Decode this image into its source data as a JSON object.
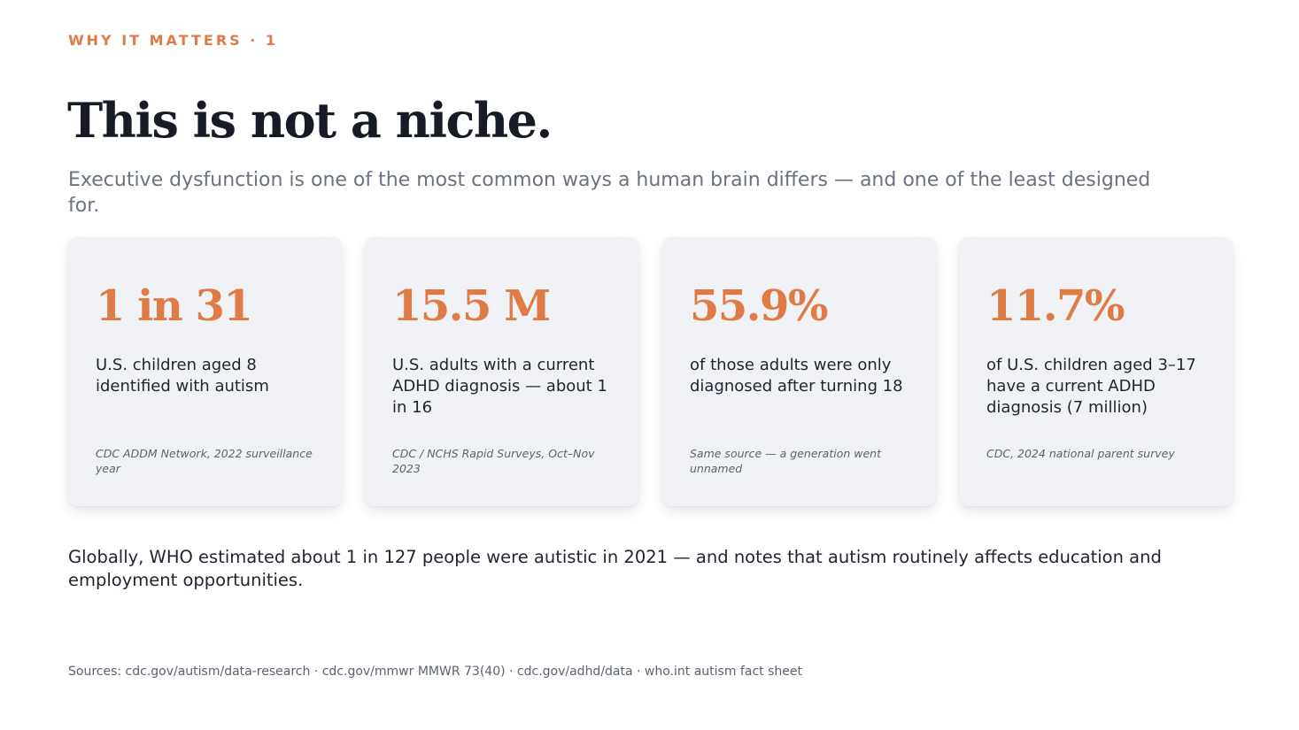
{
  "eyebrow": "WHY IT MATTERS · 1",
  "title": "This is not a niche.",
  "subtitle": "Executive dysfunction is one of the most common ways a human brain differs — and one of the least designed for.",
  "accent_color": "#e07b45",
  "stats": [
    {
      "value": "1 in 31",
      "description": "U.S. children aged 8 identified with autism",
      "source": "CDC ADDM Network, 2022 surveillance year"
    },
    {
      "value": "15.5 M",
      "description": "U.S. adults with a current ADHD diagnosis — about 1 in 16",
      "source": "CDC / NCHS Rapid Surveys, Oct–Nov 2023"
    },
    {
      "value": "55.9%",
      "description": "of those adults were only diagnosed after turning 18",
      "source": "Same source — a generation went unnamed"
    },
    {
      "value": "11.7%",
      "description": "of U.S. children aged 3–17 have a current ADHD diagnosis (7 million)",
      "source": "CDC, 2024 national parent survey"
    }
  ],
  "global_note": "Globally, WHO estimated about 1 in 127 people were autistic in 2021 — and notes that autism routinely affects education and employment opportunities.",
  "sources_footer": "Sources: cdc.gov/autism/data-research · cdc.gov/mmwr MMWR 73(40) · cdc.gov/adhd/data · who.int autism fact sheet"
}
